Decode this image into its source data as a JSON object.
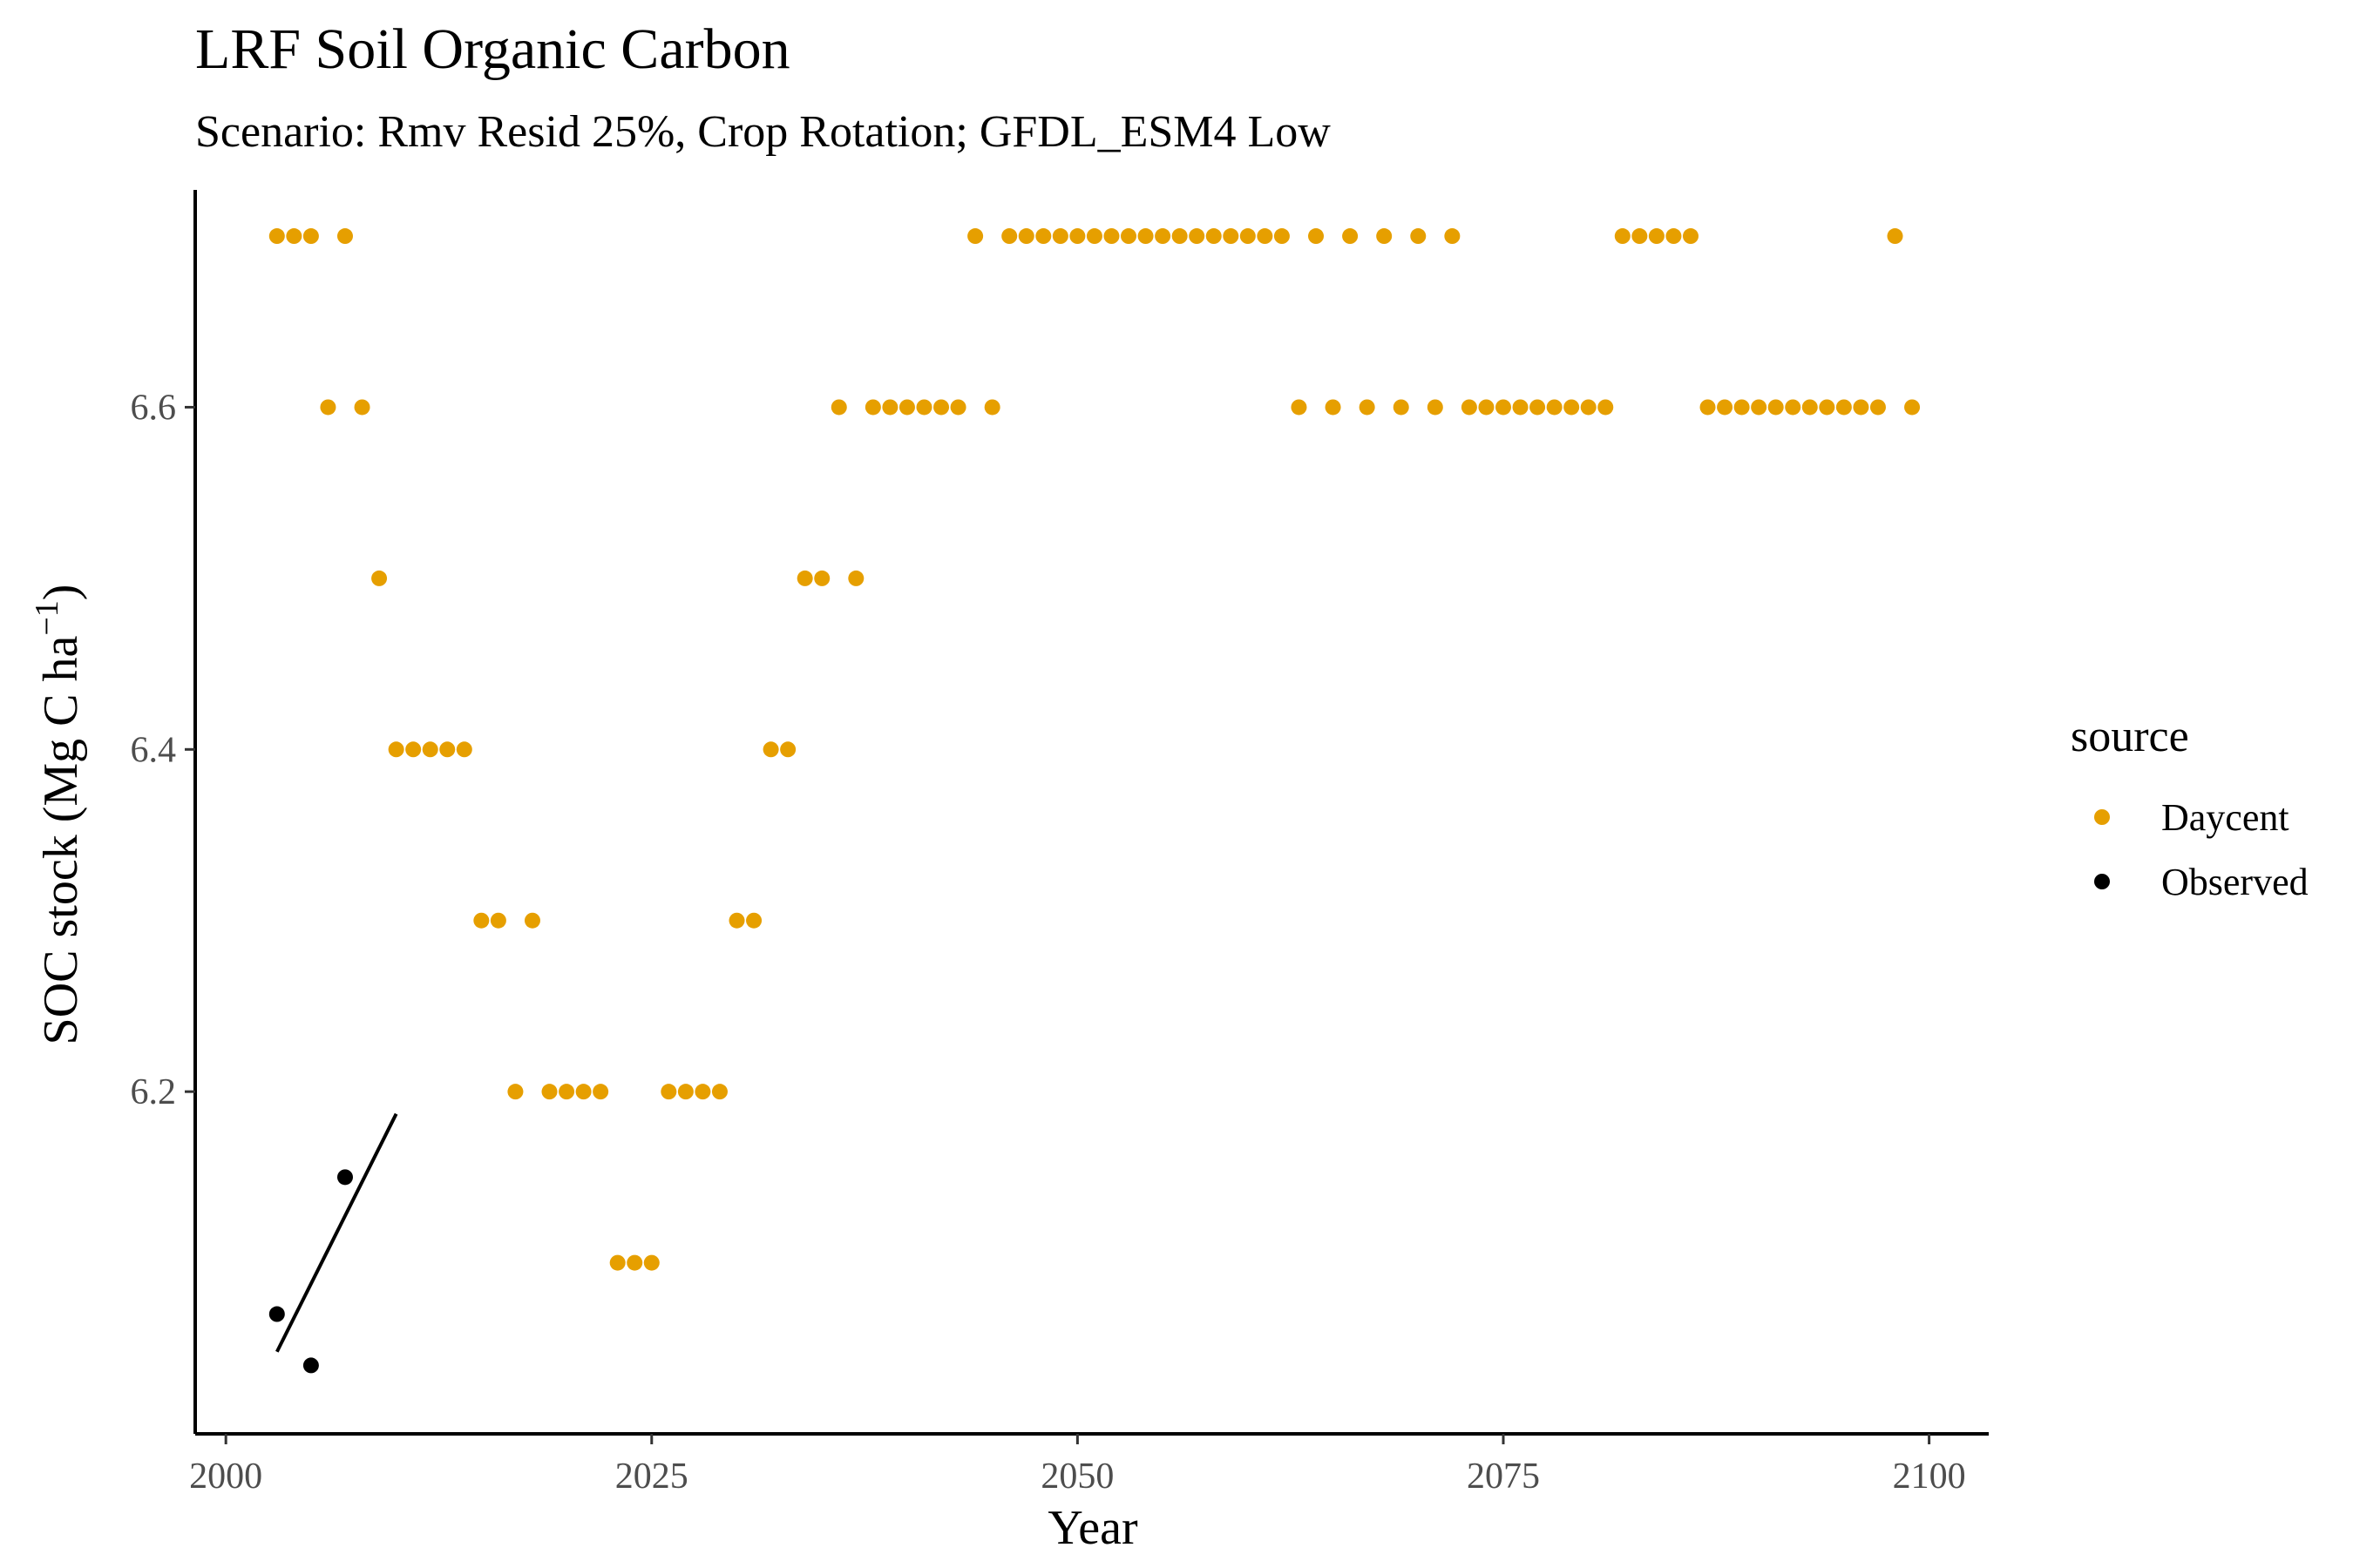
{
  "chart_data": {
    "type": "scatter",
    "title": "LRF Soil Organic Carbon",
    "subtitle": "Scenario: Rmv Resid 25%, Crop Rotation; GFDL_ESM4 Low",
    "xlabel": "Year",
    "ylabel_main": "SOC stock (Mg C ha",
    "ylabel_sup": "−1",
    "ylabel_close": ")",
    "xlim": [
      1998.2,
      2103.5
    ],
    "ylim": [
      6.0,
      6.727
    ],
    "x_ticks": [
      2000,
      2025,
      2050,
      2075,
      2100
    ],
    "x_tick_labels": [
      "2000",
      "2025",
      "2050",
      "2075",
      "2100"
    ],
    "y_ticks": [
      6.2,
      6.4,
      6.6
    ],
    "y_tick_labels": [
      "6.2",
      "6.4",
      "6.6"
    ],
    "grid": false,
    "legend": {
      "title": "source",
      "position": "right",
      "entries": [
        {
          "label": "Daycent",
          "color": "#E69F00"
        },
        {
          "label": "Observed",
          "color": "#000000"
        }
      ]
    },
    "series": [
      {
        "name": "Daycent",
        "color": "#E69F00",
        "points": [
          [
            2003,
            6.7
          ],
          [
            2004,
            6.7
          ],
          [
            2005,
            6.7
          ],
          [
            2006,
            6.6
          ],
          [
            2007,
            6.7
          ],
          [
            2008,
            6.6
          ],
          [
            2009,
            6.5
          ],
          [
            2010,
            6.4
          ],
          [
            2011,
            6.4
          ],
          [
            2012,
            6.4
          ],
          [
            2013,
            6.4
          ],
          [
            2014,
            6.4
          ],
          [
            2015,
            6.3
          ],
          [
            2016,
            6.3
          ],
          [
            2017,
            6.2
          ],
          [
            2018,
            6.3
          ],
          [
            2019,
            6.2
          ],
          [
            2020,
            6.2
          ],
          [
            2021,
            6.2
          ],
          [
            2022,
            6.2
          ],
          [
            2023,
            6.1
          ],
          [
            2024,
            6.1
          ],
          [
            2025,
            6.1
          ],
          [
            2026,
            6.2
          ],
          [
            2027,
            6.2
          ],
          [
            2028,
            6.2
          ],
          [
            2029,
            6.2
          ],
          [
            2030,
            6.3
          ],
          [
            2031,
            6.3
          ],
          [
            2032,
            6.4
          ],
          [
            2033,
            6.4
          ],
          [
            2034,
            6.5
          ],
          [
            2035,
            6.5
          ],
          [
            2036,
            6.6
          ],
          [
            2037,
            6.5
          ],
          [
            2038,
            6.6
          ],
          [
            2039,
            6.6
          ],
          [
            2040,
            6.6
          ],
          [
            2041,
            6.6
          ],
          [
            2042,
            6.6
          ],
          [
            2043,
            6.6
          ],
          [
            2044,
            6.7
          ],
          [
            2045,
            6.6
          ],
          [
            2046,
            6.7
          ],
          [
            2047,
            6.7
          ],
          [
            2048,
            6.7
          ],
          [
            2049,
            6.7
          ],
          [
            2050,
            6.7
          ],
          [
            2051,
            6.7
          ],
          [
            2052,
            6.7
          ],
          [
            2053,
            6.7
          ],
          [
            2054,
            6.7
          ],
          [
            2055,
            6.7
          ],
          [
            2056,
            6.7
          ],
          [
            2057,
            6.7
          ],
          [
            2058,
            6.7
          ],
          [
            2059,
            6.7
          ],
          [
            2060,
            6.7
          ],
          [
            2061,
            6.7
          ],
          [
            2062,
            6.7
          ],
          [
            2063,
            6.6
          ],
          [
            2064,
            6.7
          ],
          [
            2065,
            6.6
          ],
          [
            2066,
            6.7
          ],
          [
            2067,
            6.6
          ],
          [
            2068,
            6.7
          ],
          [
            2069,
            6.6
          ],
          [
            2070,
            6.7
          ],
          [
            2071,
            6.6
          ],
          [
            2072,
            6.7
          ],
          [
            2073,
            6.6
          ],
          [
            2074,
            6.6
          ],
          [
            2075,
            6.6
          ],
          [
            2076,
            6.6
          ],
          [
            2077,
            6.6
          ],
          [
            2078,
            6.6
          ],
          [
            2079,
            6.6
          ],
          [
            2080,
            6.6
          ],
          [
            2081,
            6.6
          ],
          [
            2082,
            6.7
          ],
          [
            2083,
            6.7
          ],
          [
            2084,
            6.7
          ],
          [
            2085,
            6.7
          ],
          [
            2086,
            6.7
          ],
          [
            2087,
            6.6
          ],
          [
            2088,
            6.6
          ],
          [
            2089,
            6.6
          ],
          [
            2090,
            6.6
          ],
          [
            2091,
            6.6
          ],
          [
            2092,
            6.6
          ],
          [
            2093,
            6.6
          ],
          [
            2094,
            6.6
          ],
          [
            2095,
            6.6
          ],
          [
            2096,
            6.6
          ],
          [
            2097,
            6.6
          ],
          [
            2098,
            6.7
          ],
          [
            2099,
            6.6
          ]
        ]
      },
      {
        "name": "Observed",
        "color": "#000000",
        "points": [
          [
            2003,
            6.07
          ],
          [
            2005,
            6.04
          ],
          [
            2007,
            6.15
          ]
        ]
      }
    ],
    "trend_line": {
      "color": "#000000",
      "points": [
        [
          2003,
          6.048
        ],
        [
          2010,
          6.187
        ]
      ]
    }
  }
}
